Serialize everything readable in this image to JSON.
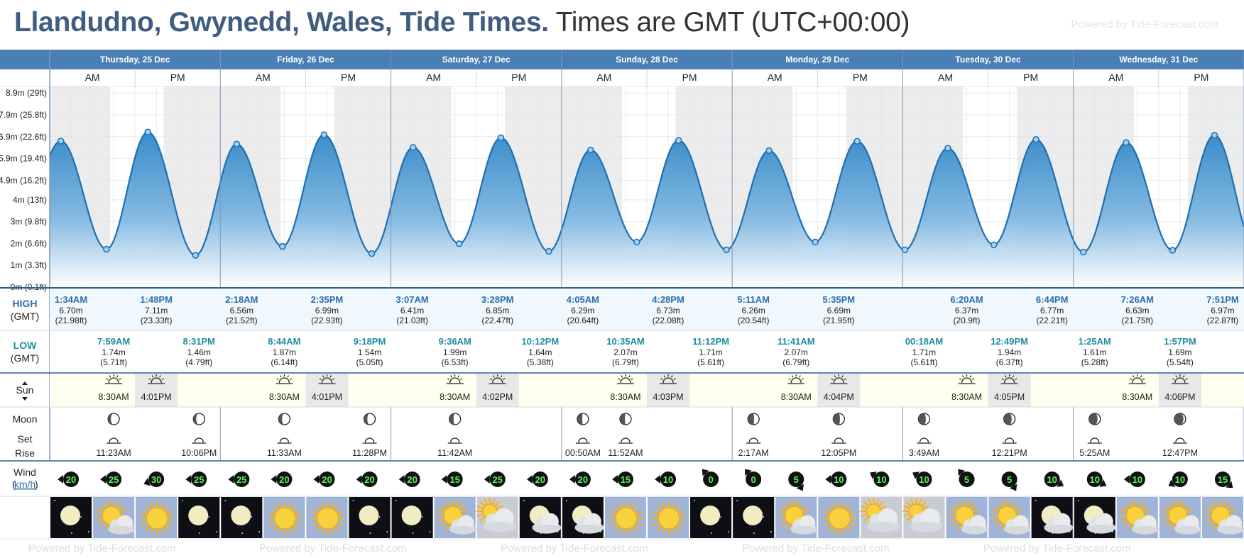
{
  "header": {
    "title_place": "Llandudno, Gwynedd, Wales, Tide Times.",
    "title_tz": "Times are GMT (UTC+00:00)",
    "powered_by": "Powered by Tide-Forecast.com"
  },
  "row_labels": {
    "high": "HIGH",
    "high_tz": "(GMT)",
    "low": "LOW",
    "low_tz": "(GMT)",
    "sun": "Sun",
    "moon": "Moon",
    "moon_set": "Set",
    "moon_rise": "Rise",
    "wind": "Wind",
    "wind_unit": "km/h",
    "am": "AM",
    "pm": "PM"
  },
  "chart_data": {
    "type": "area",
    "title": "Llandudno, Gwynedd, Wales, Tide Times.",
    "y_tick_labels": [
      "0m (0.1ft)",
      "1m (3.3ft)",
      "2m (6.6ft)",
      "3m (9.8ft)",
      "4m (13ft)",
      "4.9m (16.2ft)",
      "5.9m (19.4ft)",
      "6.9m (22.6ft)",
      "7.9m (25.8ft)",
      "8.9m (29ft)"
    ],
    "y_tick_values": [
      0,
      1,
      2,
      3,
      4,
      4.9,
      5.9,
      6.9,
      7.9,
      8.9
    ],
    "ylim": [
      0,
      9.2
    ],
    "x_range_hours": [
      0,
      168
    ],
    "grid": true,
    "days": [
      "Thursday, 25 Dec",
      "Friday, 26 Dec",
      "Saturday, 27 Dec",
      "Sunday, 28 Dec",
      "Monday, 29 Dec",
      "Tuesday, 30 Dec",
      "Wednesday, 31 Dec"
    ],
    "daylight": [
      [
        8.5,
        16.0167
      ],
      [
        32.5,
        40.0167
      ],
      [
        56.5,
        64.0333
      ],
      [
        80.5,
        88.05
      ],
      [
        104.5,
        112.0667
      ],
      [
        128.5,
        136.0833
      ],
      [
        152.5,
        160.1
      ]
    ],
    "tide_extremes": [
      {
        "h": 1.567,
        "v": 6.7
      },
      {
        "h": 7.983,
        "v": 1.74
      },
      {
        "h": 13.8,
        "v": 7.11
      },
      {
        "h": 20.517,
        "v": 1.46
      },
      {
        "h": 26.3,
        "v": 6.56
      },
      {
        "h": 32.733,
        "v": 1.87
      },
      {
        "h": 38.583,
        "v": 6.99
      },
      {
        "h": 45.3,
        "v": 1.54
      },
      {
        "h": 51.117,
        "v": 6.41
      },
      {
        "h": 57.6,
        "v": 1.99
      },
      {
        "h": 63.467,
        "v": 6.85
      },
      {
        "h": 70.2,
        "v": 1.64
      },
      {
        "h": 76.083,
        "v": 6.29
      },
      {
        "h": 82.583,
        "v": 2.07
      },
      {
        "h": 88.467,
        "v": 6.73
      },
      {
        "h": 95.2,
        "v": 1.71
      },
      {
        "h": 101.183,
        "v": 6.26
      },
      {
        "h": 107.683,
        "v": 2.07
      },
      {
        "h": 113.583,
        "v": 6.69
      },
      {
        "h": 120.3,
        "v": 1.71
      },
      {
        "h": 126.333,
        "v": 6.37
      },
      {
        "h": 132.817,
        "v": 1.94
      },
      {
        "h": 138.733,
        "v": 6.77
      },
      {
        "h": 145.417,
        "v": 1.61
      },
      {
        "h": 151.433,
        "v": 6.63
      },
      {
        "h": 157.95,
        "v": 1.69
      },
      {
        "h": 163.85,
        "v": 6.97
      }
    ],
    "high_tides": [
      {
        "h": 1.567,
        "time": "1:34AM",
        "m": "6.70m",
        "ft": "(21.98ft)"
      },
      {
        "h": 13.8,
        "time": "1:48PM",
        "m": "7.11m",
        "ft": "(23.33ft)"
      },
      {
        "h": 26.3,
        "time": "2:18AM",
        "m": "6.56m",
        "ft": "(21.52ft)"
      },
      {
        "h": 38.583,
        "time": "2:35PM",
        "m": "6.99m",
        "ft": "(22.93ft)"
      },
      {
        "h": 51.117,
        "time": "3:07AM",
        "m": "6.41m",
        "ft": "(21.03ft)"
      },
      {
        "h": 63.467,
        "time": "3:28PM",
        "m": "6.85m",
        "ft": "(22.47ft)"
      },
      {
        "h": 76.083,
        "time": "4:05AM",
        "m": "6.29m",
        "ft": "(20.64ft)"
      },
      {
        "h": 88.467,
        "time": "4:28PM",
        "m": "6.73m",
        "ft": "(22.08ft)"
      },
      {
        "h": 101.183,
        "time": "5:11AM",
        "m": "6.26m",
        "ft": "(20.54ft)"
      },
      {
        "h": 113.583,
        "time": "5:35PM",
        "m": "6.69m",
        "ft": "(21.95ft)"
      },
      {
        "h": 126.333,
        "time": "6:20AM",
        "m": "6.37m",
        "ft": "(20.9ft)"
      },
      {
        "h": 138.733,
        "time": "6:44PM",
        "m": "6.77m",
        "ft": "(22.21ft)"
      },
      {
        "h": 151.433,
        "time": "7:26AM",
        "m": "6.63m",
        "ft": "(21.75ft)"
      },
      {
        "h": 163.85,
        "time": "7:51PM",
        "m": "6.97m",
        "ft": "(22.87ft)"
      }
    ],
    "low_tides": [
      {
        "h": 7.983,
        "time": "7:59AM",
        "m": "1.74m",
        "ft": "(5.71ft)"
      },
      {
        "h": 20.517,
        "time": "8:31PM",
        "m": "1.46m",
        "ft": "(4.79ft)"
      },
      {
        "h": 32.733,
        "time": "8:44AM",
        "m": "1.87m",
        "ft": "(6.14ft)"
      },
      {
        "h": 45.3,
        "time": "9:18PM",
        "m": "1.54m",
        "ft": "(5.05ft)"
      },
      {
        "h": 57.6,
        "time": "9:36AM",
        "m": "1.99m",
        "ft": "(6.53ft)"
      },
      {
        "h": 70.2,
        "time": "10:12PM",
        "m": "1.64m",
        "ft": "(5.38ft)"
      },
      {
        "h": 82.583,
        "time": "10:35AM",
        "m": "2.07m",
        "ft": "(6.79ft)"
      },
      {
        "h": 95.2,
        "time": "11:12PM",
        "m": "1.71m",
        "ft": "(5.61ft)"
      },
      {
        "h": 107.683,
        "time": "11:41AM",
        "m": "2.07m",
        "ft": "(6.79ft)"
      },
      {
        "h": 120.3,
        "time": "00:18AM",
        "m": "1.71m",
        "ft": "(5.61ft)"
      },
      {
        "h": 132.817,
        "time": "12:49PM",
        "m": "1.94m",
        "ft": "(6.37ft)"
      },
      {
        "h": 145.417,
        "time": "1:25AM",
        "m": "1.61m",
        "ft": "(5.28ft)"
      },
      {
        "h": 157.95,
        "time": "1:57PM",
        "m": "1.69m",
        "ft": "(5.54ft)"
      }
    ],
    "sunrise": [
      "8:30AM",
      "8:30AM",
      "8:30AM",
      "8:30AM",
      "8:30AM",
      "8:30AM",
      "8:30AM"
    ],
    "sunset": [
      "4:01PM",
      "4:01PM",
      "4:02PM",
      "4:03PM",
      "4:04PM",
      "4:05PM",
      "4:06PM"
    ],
    "moon_events": [
      {
        "col": 1,
        "phase": 0.25,
        "type": "rise",
        "time": "11:23AM"
      },
      {
        "col": 3,
        "phase": 0.25,
        "type": "set",
        "time": "10:06PM"
      },
      {
        "col": 5,
        "phase": 0.3,
        "type": "rise",
        "time": "11:33AM"
      },
      {
        "col": 7,
        "phase": 0.3,
        "type": "set",
        "time": "11:28PM"
      },
      {
        "col": 9,
        "phase": 0.38,
        "type": "rise",
        "time": "11:42AM"
      },
      {
        "col": 12,
        "phase": 0.45,
        "type": "set",
        "time": "00:50AM"
      },
      {
        "col": 13,
        "phase": 0.45,
        "type": "rise",
        "time": "11:52AM"
      },
      {
        "col": 16,
        "phase": 0.55,
        "type": "set",
        "time": "2:17AM"
      },
      {
        "col": 18,
        "phase": 0.6,
        "type": "rise",
        "time": "12:05PM"
      },
      {
        "col": 20,
        "phase": 0.65,
        "type": "set",
        "time": "3:49AM"
      },
      {
        "col": 22,
        "phase": 0.7,
        "type": "rise",
        "time": "12:21PM"
      },
      {
        "col": 24,
        "phase": 0.75,
        "type": "set",
        "time": "5:25AM"
      },
      {
        "col": 26,
        "phase": 0.8,
        "type": "rise",
        "time": "12:47PM"
      }
    ],
    "wind": [
      {
        "v": "20",
        "dir": 270
      },
      {
        "v": "25",
        "dir": 270
      },
      {
        "v": "30",
        "dir": 250
      },
      {
        "v": "25",
        "dir": 270
      },
      {
        "v": "25",
        "dir": 270
      },
      {
        "v": "20",
        "dir": 270
      },
      {
        "v": "20",
        "dir": 270
      },
      {
        "v": "20",
        "dir": 270
      },
      {
        "v": "20",
        "dir": 270
      },
      {
        "v": "15",
        "dir": 270
      },
      {
        "v": "25",
        "dir": 270
      },
      {
        "v": "20",
        "dir": 270
      },
      {
        "v": "20",
        "dir": 270
      },
      {
        "v": "15",
        "dir": 270
      },
      {
        "v": "10",
        "dir": 270
      },
      {
        "v": "0",
        "dir": 320
      },
      {
        "v": "0",
        "dir": 320
      },
      {
        "v": "5",
        "dir": 150
      },
      {
        "v": "10",
        "dir": 270
      },
      {
        "v": "10",
        "dir": 300
      },
      {
        "v": "10",
        "dir": 300
      },
      {
        "v": "5",
        "dir": 320
      },
      {
        "v": "5",
        "dir": 150
      },
      {
        "v": "10",
        "dir": 120
      },
      {
        "v": "10",
        "dir": 120
      },
      {
        "v": "10",
        "dir": 270
      },
      {
        "v": "10",
        "dir": 240
      },
      {
        "v": "15",
        "dir": 130
      }
    ],
    "weather": [
      "moon-icon",
      "sun-cloud-icon",
      "sun-icon",
      "moon-icon",
      "moon-icon",
      "sun-icon",
      "sun-icon",
      "moon-icon",
      "moon-icon",
      "sun-cloud-icon",
      "cloud-icon",
      "moon-cloud-icon",
      "moon-cloud-icon",
      "sun-icon",
      "sun-icon",
      "moon-icon",
      "moon-icon",
      "sun-cloud-icon",
      "sun-icon",
      "cloud-icon",
      "cloud-icon",
      "sun-cloud-icon",
      "sun-cloud-icon",
      "moon-cloud-icon",
      "moon-cloud-icon",
      "sun-cloud-icon",
      "sun-cloud-icon",
      "sun-cloud-icon"
    ]
  },
  "colors": {
    "header_blue": "#4a7fb5",
    "title_blue": "#3e5d80",
    "high_label": "#2d6fa8",
    "low_label": "#1c8ca0",
    "wind_badge": "#111111",
    "wind_text": "#5cf25c"
  }
}
